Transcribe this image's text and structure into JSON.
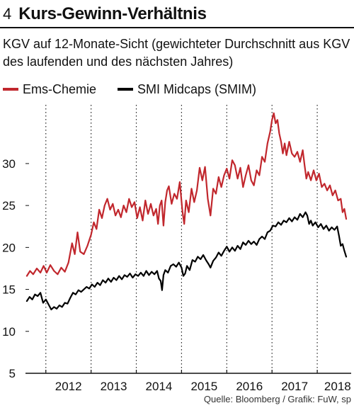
{
  "header": {
    "chart_number": "4",
    "title": "Kurs-Gewinn-Verhältnis",
    "subtitle": "KGV auf 12-Monate-Sicht (gewichteter Durchschnitt aus KGV des laufenden und des nächsten Jahres)"
  },
  "source": "Quelle: Bloomberg / Grafik: FuW, sp",
  "colors": {
    "ems": "#c1272d",
    "smim": "#000000",
    "grid": "#222222"
  },
  "chart_data": {
    "type": "line",
    "title": "Kurs-Gewinn-Verhältnis",
    "subtitle": "KGV auf 12-Monate-Sicht (gewichteter Durchschnitt aus KGV des laufenden und des nächsten Jahres)",
    "x_range": [
      2011.55,
      2018.75
    ],
    "ylim": [
      5,
      37
    ],
    "y_ticks": [
      5,
      10,
      15,
      20,
      25,
      30
    ],
    "x_tick_labels": [
      "2012",
      "2013",
      "2014",
      "2015",
      "2016",
      "2017",
      "2018"
    ],
    "x_tick_positions": [
      2012.0,
      2013.0,
      2014.0,
      2015.0,
      2016.0,
      2017.0,
      2018.0
    ],
    "grid": "dotted vertical at year boundaries",
    "legend_position": "top-left",
    "series": [
      {
        "name": "Ems-Chemie",
        "color": "#c1272d",
        "points": [
          [
            2011.58,
            16.6
          ],
          [
            2011.65,
            17.2
          ],
          [
            2011.72,
            16.8
          ],
          [
            2011.8,
            17.5
          ],
          [
            2011.88,
            17.0
          ],
          [
            2011.95,
            17.8
          ],
          [
            2012.02,
            17.0
          ],
          [
            2012.1,
            17.9
          ],
          [
            2012.18,
            17.2
          ],
          [
            2012.26,
            16.8
          ],
          [
            2012.34,
            17.6
          ],
          [
            2012.42,
            17.1
          ],
          [
            2012.5,
            18.2
          ],
          [
            2012.58,
            20.5
          ],
          [
            2012.64,
            19.2
          ],
          [
            2012.7,
            21.8
          ],
          [
            2012.76,
            19.5
          ],
          [
            2012.84,
            19.2
          ],
          [
            2012.92,
            20.2
          ],
          [
            2013.0,
            21.5
          ],
          [
            2013.06,
            23.0
          ],
          [
            2013.12,
            22.2
          ],
          [
            2013.18,
            24.5
          ],
          [
            2013.24,
            23.5
          ],
          [
            2013.3,
            25.0
          ],
          [
            2013.36,
            25.8
          ],
          [
            2013.42,
            24.5
          ],
          [
            2013.48,
            25.2
          ],
          [
            2013.54,
            23.8
          ],
          [
            2013.6,
            24.5
          ],
          [
            2013.66,
            23.6
          ],
          [
            2013.72,
            25.0
          ],
          [
            2013.78,
            24.2
          ],
          [
            2013.84,
            25.8
          ],
          [
            2013.9,
            24.8
          ],
          [
            2013.96,
            25.4
          ],
          [
            2014.02,
            23.5
          ],
          [
            2014.08,
            24.8
          ],
          [
            2014.14,
            23.2
          ],
          [
            2014.2,
            25.6
          ],
          [
            2014.26,
            24.0
          ],
          [
            2014.32,
            25.2
          ],
          [
            2014.38,
            23.8
          ],
          [
            2014.44,
            24.6
          ],
          [
            2014.48,
            22.8
          ],
          [
            2014.52,
            25.0
          ],
          [
            2014.56,
            25.6
          ],
          [
            2014.6,
            22.6
          ],
          [
            2014.64,
            25.4
          ],
          [
            2014.68,
            26.8
          ],
          [
            2014.72,
            27.3
          ],
          [
            2014.78,
            25.2
          ],
          [
            2014.84,
            26.4
          ],
          [
            2014.9,
            25.8
          ],
          [
            2014.96,
            27.8
          ],
          [
            2015.02,
            24.3
          ],
          [
            2015.06,
            22.8
          ],
          [
            2015.1,
            25.6
          ],
          [
            2015.16,
            24.2
          ],
          [
            2015.22,
            27.0
          ],
          [
            2015.28,
            25.4
          ],
          [
            2015.34,
            26.8
          ],
          [
            2015.4,
            29.5
          ],
          [
            2015.46,
            28.0
          ],
          [
            2015.52,
            29.6
          ],
          [
            2015.58,
            25.8
          ],
          [
            2015.64,
            23.8
          ],
          [
            2015.7,
            27.0
          ],
          [
            2015.76,
            26.4
          ],
          [
            2015.82,
            28.4
          ],
          [
            2015.88,
            27.2
          ],
          [
            2015.94,
            28.6
          ],
          [
            2016.0,
            29.4
          ],
          [
            2016.06,
            28.2
          ],
          [
            2016.12,
            30.4
          ],
          [
            2016.18,
            29.8
          ],
          [
            2016.24,
            28.2
          ],
          [
            2016.3,
            29.5
          ],
          [
            2016.36,
            27.2
          ],
          [
            2016.42,
            28.6
          ],
          [
            2016.48,
            29.8
          ],
          [
            2016.54,
            28.0
          ],
          [
            2016.6,
            27.4
          ],
          [
            2016.66,
            29.2
          ],
          [
            2016.72,
            28.6
          ],
          [
            2016.78,
            30.8
          ],
          [
            2016.84,
            30.2
          ],
          [
            2016.9,
            32.4
          ],
          [
            2016.96,
            33.8
          ],
          [
            2017.0,
            35.2
          ],
          [
            2017.04,
            36.0
          ],
          [
            2017.08,
            34.8
          ],
          [
            2017.12,
            35.2
          ],
          [
            2017.16,
            33.6
          ],
          [
            2017.2,
            32.6
          ],
          [
            2017.24,
            31.2
          ],
          [
            2017.28,
            32.4
          ],
          [
            2017.32,
            31.0
          ],
          [
            2017.38,
            32.6
          ],
          [
            2017.44,
            31.2
          ],
          [
            2017.5,
            30.8
          ],
          [
            2017.56,
            31.4
          ],
          [
            2017.62,
            30.2
          ],
          [
            2017.68,
            31.6
          ],
          [
            2017.72,
            29.8
          ],
          [
            2017.76,
            28.2
          ],
          [
            2017.8,
            29.0
          ],
          [
            2017.86,
            28.0
          ],
          [
            2017.92,
            29.2
          ],
          [
            2017.98,
            28.0
          ],
          [
            2018.04,
            28.8
          ],
          [
            2018.1,
            27.2
          ],
          [
            2018.16,
            27.6
          ],
          [
            2018.22,
            26.8
          ],
          [
            2018.28,
            27.4
          ],
          [
            2018.34,
            26.2
          ],
          [
            2018.4,
            26.8
          ],
          [
            2018.46,
            25.6
          ],
          [
            2018.52,
            25.8
          ],
          [
            2018.56,
            24.2
          ],
          [
            2018.6,
            24.6
          ],
          [
            2018.64,
            23.4
          ]
        ]
      },
      {
        "name": "SMI Midcaps (SMIM)",
        "color": "#000000",
        "points": [
          [
            2011.58,
            13.6
          ],
          [
            2011.64,
            14.1
          ],
          [
            2011.7,
            13.8
          ],
          [
            2011.76,
            14.4
          ],
          [
            2011.82,
            14.2
          ],
          [
            2011.88,
            14.6
          ],
          [
            2011.94,
            13.4
          ],
          [
            2012.0,
            13.8
          ],
          [
            2012.06,
            13.2
          ],
          [
            2012.12,
            12.6
          ],
          [
            2012.18,
            12.9
          ],
          [
            2012.24,
            12.7
          ],
          [
            2012.3,
            13.1
          ],
          [
            2012.36,
            12.9
          ],
          [
            2012.42,
            13.4
          ],
          [
            2012.48,
            13.3
          ],
          [
            2012.54,
            14.0
          ],
          [
            2012.6,
            14.6
          ],
          [
            2012.66,
            14.4
          ],
          [
            2012.72,
            14.9
          ],
          [
            2012.78,
            14.7
          ],
          [
            2012.84,
            15.0
          ],
          [
            2012.9,
            15.3
          ],
          [
            2012.96,
            15.1
          ],
          [
            2013.02,
            15.6
          ],
          [
            2013.08,
            15.3
          ],
          [
            2013.14,
            15.8
          ],
          [
            2013.2,
            15.5
          ],
          [
            2013.26,
            16.1
          ],
          [
            2013.32,
            15.8
          ],
          [
            2013.38,
            16.3
          ],
          [
            2013.44,
            15.9
          ],
          [
            2013.5,
            16.4
          ],
          [
            2013.56,
            16.1
          ],
          [
            2013.62,
            16.6
          ],
          [
            2013.68,
            16.2
          ],
          [
            2013.74,
            16.7
          ],
          [
            2013.8,
            16.5
          ],
          [
            2013.86,
            16.9
          ],
          [
            2013.92,
            16.4
          ],
          [
            2013.98,
            16.8
          ],
          [
            2014.04,
            16.6
          ],
          [
            2014.1,
            17.0
          ],
          [
            2014.16,
            16.6
          ],
          [
            2014.22,
            17.2
          ],
          [
            2014.28,
            16.7
          ],
          [
            2014.34,
            17.1
          ],
          [
            2014.4,
            16.8
          ],
          [
            2014.46,
            17.2
          ],
          [
            2014.5,
            16.3
          ],
          [
            2014.54,
            16.0
          ],
          [
            2014.57,
            14.9
          ],
          [
            2014.6,
            16.7
          ],
          [
            2014.64,
            17.3
          ],
          [
            2014.7,
            17.0
          ],
          [
            2014.76,
            17.8
          ],
          [
            2014.82,
            18.0
          ],
          [
            2014.88,
            17.7
          ],
          [
            2014.94,
            18.2
          ],
          [
            2015.0,
            17.6
          ],
          [
            2015.04,
            16.6
          ],
          [
            2015.08,
            16.9
          ],
          [
            2015.12,
            17.8
          ],
          [
            2015.18,
            17.3
          ],
          [
            2015.24,
            18.5
          ],
          [
            2015.3,
            18.3
          ],
          [
            2015.36,
            18.9
          ],
          [
            2015.42,
            18.6
          ],
          [
            2015.48,
            19.1
          ],
          [
            2015.54,
            18.5
          ],
          [
            2015.6,
            18.0
          ],
          [
            2015.64,
            17.6
          ],
          [
            2015.7,
            18.4
          ],
          [
            2015.76,
            18.8
          ],
          [
            2015.82,
            19.4
          ],
          [
            2015.88,
            19.0
          ],
          [
            2015.94,
            19.6
          ],
          [
            2016.0,
            20.1
          ],
          [
            2016.06,
            19.5
          ],
          [
            2016.12,
            20.0
          ],
          [
            2016.18,
            19.6
          ],
          [
            2016.24,
            20.2
          ],
          [
            2016.3,
            19.8
          ],
          [
            2016.36,
            20.6
          ],
          [
            2016.42,
            20.3
          ],
          [
            2016.48,
            20.8
          ],
          [
            2016.54,
            20.4
          ],
          [
            2016.6,
            20.7
          ],
          [
            2016.66,
            20.3
          ],
          [
            2016.72,
            21.0
          ],
          [
            2016.78,
            21.3
          ],
          [
            2016.84,
            21.0
          ],
          [
            2016.9,
            21.8
          ],
          [
            2016.96,
            22.0
          ],
          [
            2017.02,
            22.6
          ],
          [
            2017.08,
            22.5
          ],
          [
            2017.14,
            23.0
          ],
          [
            2017.2,
            22.7
          ],
          [
            2017.26,
            23.2
          ],
          [
            2017.32,
            23.0
          ],
          [
            2017.38,
            23.5
          ],
          [
            2017.44,
            23.1
          ],
          [
            2017.5,
            23.6
          ],
          [
            2017.56,
            23.3
          ],
          [
            2017.62,
            24.0
          ],
          [
            2017.68,
            23.6
          ],
          [
            2017.74,
            24.2
          ],
          [
            2017.78,
            23.8
          ],
          [
            2017.82,
            22.8
          ],
          [
            2017.86,
            23.2
          ],
          [
            2017.9,
            22.6
          ],
          [
            2017.96,
            23.0
          ],
          [
            2018.02,
            22.4
          ],
          [
            2018.08,
            22.8
          ],
          [
            2018.14,
            22.2
          ],
          [
            2018.2,
            22.6
          ],
          [
            2018.26,
            22.0
          ],
          [
            2018.32,
            22.4
          ],
          [
            2018.38,
            22.1
          ],
          [
            2018.44,
            22.5
          ],
          [
            2018.48,
            21.4
          ],
          [
            2018.52,
            20.2
          ],
          [
            2018.56,
            20.4
          ],
          [
            2018.6,
            19.6
          ],
          [
            2018.64,
            18.9
          ]
        ]
      }
    ]
  }
}
